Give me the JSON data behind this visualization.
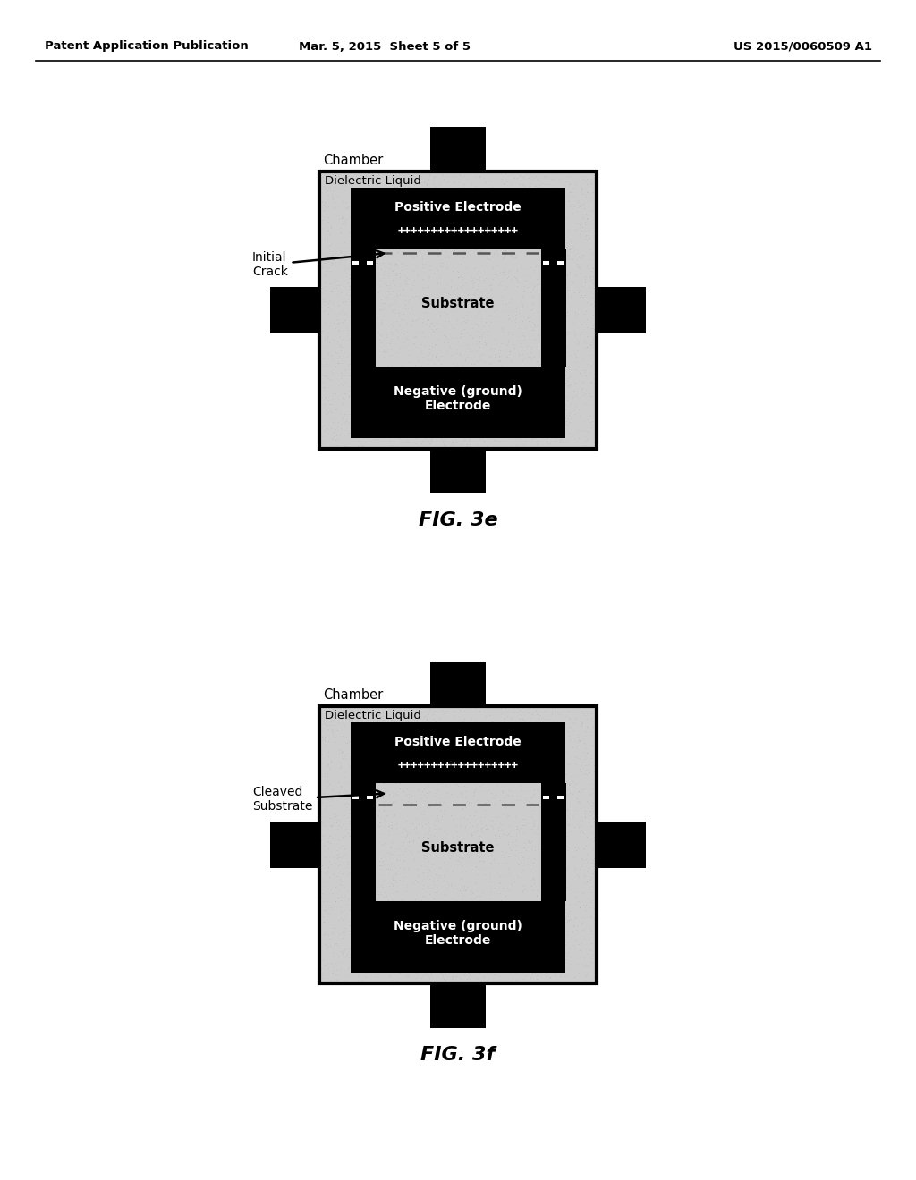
{
  "header_left": "Patent Application Publication",
  "header_mid": "Mar. 5, 2015  Sheet 5 of 5",
  "header_right": "US 2015/0060509 A1",
  "fig1_label": "FIG. 3e",
  "fig2_label": "FIG. 3f",
  "fig1_annotation": "Initial\nCrack",
  "fig2_annotation": "Cleaved\nSubstrate",
  "chamber_label": "Chamber",
  "dielectric_label": "Dielectric Liquid",
  "pos_electrode_label": "Positive Electrode",
  "substrate_label": "Substrate",
  "neg_electrode_label": "Negative (ground)\nElectrode",
  "plus_chars": "++++++++++++++++++",
  "bg_color": "#ffffff",
  "black": "#000000",
  "light_gray": "#c8c8c8",
  "medium_gray": "#b8b8b8",
  "stipple_gray": "#c0c0c0"
}
